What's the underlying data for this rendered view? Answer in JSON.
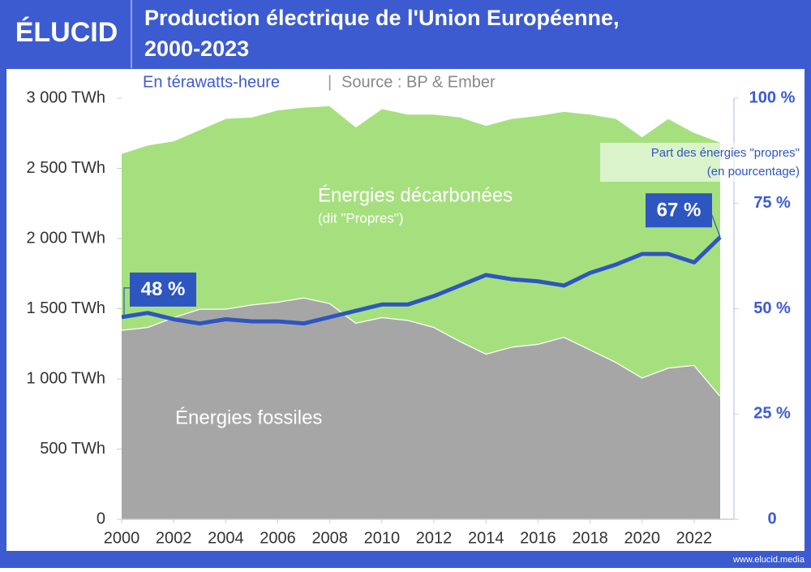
{
  "logo": "ÉLUCID",
  "footer": "www.elucid.media",
  "chart_data": {
    "type": "stacked-area-line",
    "title": [
      "Production électrique de l'Union Européenne,",
      "2000-2023"
    ],
    "subtitle": "En térawatts-heure",
    "source": "Source : BP & Ember",
    "x": [
      2000,
      2001,
      2002,
      2003,
      2004,
      2005,
      2006,
      2007,
      2008,
      2009,
      2010,
      2011,
      2012,
      2013,
      2014,
      2015,
      2016,
      2017,
      2018,
      2019,
      2020,
      2021,
      2022,
      2023
    ],
    "xlim": [
      2000,
      2023
    ],
    "xticks": [
      2000,
      2002,
      2004,
      2006,
      2008,
      2010,
      2012,
      2014,
      2016,
      2018,
      2020,
      2022
    ],
    "ylim": [
      0,
      3000
    ],
    "yticks": [
      0,
      {
        "value": 500,
        "label": "500 TWh"
      },
      {
        "value": 1000,
        "label": "1 000 TWh"
      },
      {
        "value": 1500,
        "label": "1 500 TWh"
      },
      {
        "value": 2000,
        "label": "2 000 TWh"
      },
      {
        "value": 2500,
        "label": "2 500 TWh"
      },
      {
        "value": 3000,
        "label": "3 000 TWh"
      }
    ],
    "y2lim": [
      0,
      100
    ],
    "y2ticks": [
      0,
      {
        "value": 25,
        "label": "25 %"
      },
      {
        "value": 50,
        "label": "50 %"
      },
      {
        "value": 75,
        "label": "75 %"
      },
      {
        "value": 100,
        "label": "100 %"
      }
    ],
    "series": [
      {
        "name": "Énergies fossiles",
        "color": "#a6a6a6",
        "values": [
          1350,
          1370,
          1440,
          1500,
          1500,
          1530,
          1550,
          1580,
          1540,
          1400,
          1440,
          1420,
          1370,
          1270,
          1180,
          1230,
          1250,
          1300,
          1210,
          1120,
          1010,
          1080,
          1100,
          880
        ]
      },
      {
        "name": "Énergies décarbonées",
        "note": "(dit \"Propres\")",
        "color": "#a6e07e",
        "values": [
          1260,
          1300,
          1260,
          1280,
          1360,
          1340,
          1370,
          1360,
          1410,
          1400,
          1490,
          1470,
          1520,
          1600,
          1630,
          1630,
          1630,
          1610,
          1680,
          1740,
          1720,
          1780,
          1660,
          1810
        ]
      },
      {
        "name": "Part des énergies \"propres\"",
        "note": "(en pourcentage)",
        "color": "#2d56c0",
        "axis": "y2",
        "values": [
          48,
          49,
          47.5,
          46.5,
          47.5,
          47,
          47,
          46.5,
          48,
          49.5,
          51,
          51,
          53,
          55.5,
          58,
          57,
          56.5,
          55.5,
          58.5,
          60.5,
          63,
          63,
          61,
          67
        ],
        "value_labels": [
          "48 %",
          null,
          null,
          null,
          null,
          null,
          null,
          null,
          null,
          null,
          null,
          null,
          null,
          null,
          null,
          null,
          null,
          null,
          null,
          null,
          null,
          null,
          null,
          "67 %"
        ]
      }
    ]
  }
}
